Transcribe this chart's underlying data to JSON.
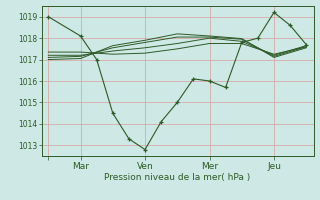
{
  "xlabel": "Pression niveau de la mer( hPa )",
  "ylim": [
    1012.5,
    1019.5
  ],
  "yticks": [
    1013,
    1014,
    1015,
    1016,
    1017,
    1018,
    1019
  ],
  "xtick_positions": [
    0,
    48,
    144,
    240,
    336
  ],
  "xtick_labels": [
    "",
    "Mar",
    "Ven",
    "Mer",
    "Jeu"
  ],
  "bg_color": "#cde8e5",
  "grid_color": "#d9a0a0",
  "line_color": "#2d5a27",
  "line1_x": [
    0,
    48,
    72,
    96,
    120,
    144,
    168,
    192,
    216,
    240,
    264,
    288,
    312,
    336,
    360,
    384
  ],
  "line1_y": [
    1019.0,
    1018.1,
    1017.0,
    1014.5,
    1013.3,
    1012.8,
    1014.1,
    1015.0,
    1016.1,
    1016.0,
    1015.7,
    1017.8,
    1018.0,
    1019.2,
    1018.6,
    1017.7
  ],
  "line2_x": [
    0,
    48,
    96,
    144,
    192,
    240,
    288,
    336,
    384
  ],
  "line2_y": [
    1017.35,
    1017.35,
    1017.25,
    1017.3,
    1017.5,
    1017.75,
    1017.75,
    1017.25,
    1017.6
  ],
  "line3_x": [
    0,
    48,
    96,
    144,
    192,
    240,
    288,
    336,
    384
  ],
  "line3_y": [
    1017.2,
    1017.2,
    1017.4,
    1017.55,
    1017.75,
    1018.0,
    1017.85,
    1017.2,
    1017.65
  ],
  "line4_x": [
    0,
    48,
    96,
    144,
    192,
    240,
    288,
    336,
    384
  ],
  "line4_y": [
    1017.1,
    1017.15,
    1017.55,
    1017.8,
    1018.05,
    1018.05,
    1017.95,
    1017.15,
    1017.6
  ],
  "line5_x": [
    0,
    48,
    96,
    144,
    192,
    240,
    288,
    336,
    384
  ],
  "line5_y": [
    1017.0,
    1017.05,
    1017.65,
    1017.9,
    1018.2,
    1018.1,
    1017.98,
    1017.1,
    1017.55
  ],
  "xlim": [
    -10,
    395
  ]
}
